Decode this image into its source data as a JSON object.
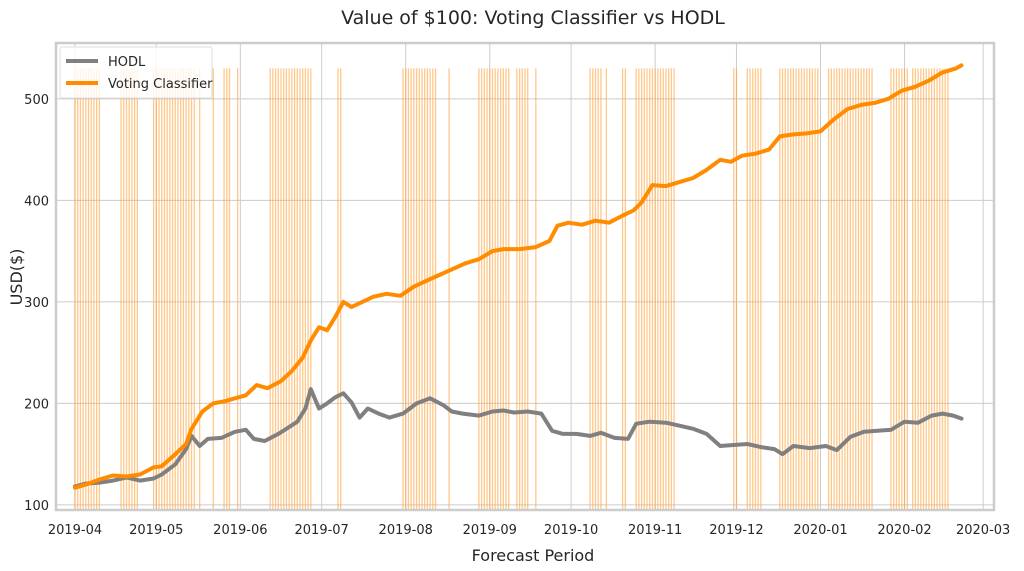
{
  "chart_data": {
    "type": "line",
    "title": "Value of $100: Voting Classifier vs HODL",
    "xlabel": "Forecast Period",
    "ylabel": "USD($)",
    "x_range": [
      "2019-03-25",
      "2020-03-05"
    ],
    "ylim": [
      95,
      555
    ],
    "grid": true,
    "legend_position": "top-left",
    "x_ticks": [
      "2019-04",
      "2019-05",
      "2019-06",
      "2019-07",
      "2019-08",
      "2019-09",
      "2019-10",
      "2019-11",
      "2019-12",
      "2020-01",
      "2020-02",
      "2020-03"
    ],
    "y_ticks": [
      100,
      200,
      300,
      400,
      500
    ],
    "series": [
      {
        "name": "HODL",
        "color": "#808080",
        "points": [
          [
            "2019-04-01",
            118
          ],
          [
            "2019-04-05",
            121
          ],
          [
            "2019-04-10",
            122
          ],
          [
            "2019-04-15",
            124
          ],
          [
            "2019-04-20",
            127
          ],
          [
            "2019-04-25",
            124
          ],
          [
            "2019-04-30",
            126
          ],
          [
            "2019-05-03",
            130
          ],
          [
            "2019-05-08",
            140
          ],
          [
            "2019-05-12",
            155
          ],
          [
            "2019-05-14",
            168
          ],
          [
            "2019-05-17",
            158
          ],
          [
            "2019-05-20",
            165
          ],
          [
            "2019-05-25",
            166
          ],
          [
            "2019-05-30",
            172
          ],
          [
            "2019-06-03",
            174
          ],
          [
            "2019-06-06",
            165
          ],
          [
            "2019-06-10",
            163
          ],
          [
            "2019-06-15",
            170
          ],
          [
            "2019-06-18",
            175
          ],
          [
            "2019-06-22",
            182
          ],
          [
            "2019-06-25",
            195
          ],
          [
            "2019-06-27",
            214
          ],
          [
            "2019-06-30",
            195
          ],
          [
            "2019-07-03",
            200
          ],
          [
            "2019-07-06",
            206
          ],
          [
            "2019-07-09",
            210
          ],
          [
            "2019-07-12",
            201
          ],
          [
            "2019-07-15",
            186
          ],
          [
            "2019-07-18",
            195
          ],
          [
            "2019-07-22",
            190
          ],
          [
            "2019-07-26",
            186
          ],
          [
            "2019-07-31",
            190
          ],
          [
            "2019-08-05",
            200
          ],
          [
            "2019-08-10",
            205
          ],
          [
            "2019-08-15",
            198
          ],
          [
            "2019-08-18",
            192
          ],
          [
            "2019-08-22",
            190
          ],
          [
            "2019-08-28",
            188
          ],
          [
            "2019-09-02",
            192
          ],
          [
            "2019-09-06",
            193
          ],
          [
            "2019-09-10",
            191
          ],
          [
            "2019-09-15",
            192
          ],
          [
            "2019-09-20",
            190
          ],
          [
            "2019-09-24",
            173
          ],
          [
            "2019-09-28",
            170
          ],
          [
            "2019-10-03",
            170
          ],
          [
            "2019-10-08",
            168
          ],
          [
            "2019-10-12",
            171
          ],
          [
            "2019-10-17",
            166
          ],
          [
            "2019-10-22",
            165
          ],
          [
            "2019-10-25",
            180
          ],
          [
            "2019-10-30",
            182
          ],
          [
            "2019-11-05",
            181
          ],
          [
            "2019-11-10",
            178
          ],
          [
            "2019-11-15",
            175
          ],
          [
            "2019-11-20",
            170
          ],
          [
            "2019-11-25",
            158
          ],
          [
            "2019-11-30",
            159
          ],
          [
            "2019-12-05",
            160
          ],
          [
            "2019-12-10",
            157
          ],
          [
            "2019-12-15",
            155
          ],
          [
            "2019-12-18",
            150
          ],
          [
            "2019-12-22",
            158
          ],
          [
            "2019-12-28",
            156
          ],
          [
            "2020-01-03",
            158
          ],
          [
            "2020-01-07",
            154
          ],
          [
            "2020-01-12",
            167
          ],
          [
            "2020-01-17",
            172
          ],
          [
            "2020-01-22",
            173
          ],
          [
            "2020-01-27",
            174
          ],
          [
            "2020-02-01",
            182
          ],
          [
            "2020-02-06",
            181
          ],
          [
            "2020-02-11",
            188
          ],
          [
            "2020-02-15",
            190
          ],
          [
            "2020-02-19",
            188
          ],
          [
            "2020-02-22",
            185
          ]
        ]
      },
      {
        "name": "Voting Classifier",
        "color": "#ff8c00",
        "points": [
          [
            "2019-04-01",
            117
          ],
          [
            "2019-04-05",
            120
          ],
          [
            "2019-04-10",
            125
          ],
          [
            "2019-04-15",
            129
          ],
          [
            "2019-04-20",
            128
          ],
          [
            "2019-04-25",
            130
          ],
          [
            "2019-04-30",
            137
          ],
          [
            "2019-05-03",
            138
          ],
          [
            "2019-05-08",
            150
          ],
          [
            "2019-05-12",
            160
          ],
          [
            "2019-05-14",
            175
          ],
          [
            "2019-05-18",
            192
          ],
          [
            "2019-05-22",
            200
          ],
          [
            "2019-05-26",
            202
          ],
          [
            "2019-05-30",
            205
          ],
          [
            "2019-06-03",
            208
          ],
          [
            "2019-06-07",
            218
          ],
          [
            "2019-06-11",
            215
          ],
          [
            "2019-06-16",
            222
          ],
          [
            "2019-06-20",
            232
          ],
          [
            "2019-06-24",
            245
          ],
          [
            "2019-06-27",
            262
          ],
          [
            "2019-06-30",
            275
          ],
          [
            "2019-07-03",
            272
          ],
          [
            "2019-07-06",
            285
          ],
          [
            "2019-07-09",
            300
          ],
          [
            "2019-07-12",
            295
          ],
          [
            "2019-07-16",
            300
          ],
          [
            "2019-07-20",
            305
          ],
          [
            "2019-07-25",
            308
          ],
          [
            "2019-07-30",
            306
          ],
          [
            "2019-08-04",
            315
          ],
          [
            "2019-08-08",
            320
          ],
          [
            "2019-08-13",
            326
          ],
          [
            "2019-08-18",
            332
          ],
          [
            "2019-08-23",
            338
          ],
          [
            "2019-08-28",
            342
          ],
          [
            "2019-09-02",
            350
          ],
          [
            "2019-09-06",
            352
          ],
          [
            "2019-09-12",
            352
          ],
          [
            "2019-09-18",
            354
          ],
          [
            "2019-09-23",
            360
          ],
          [
            "2019-09-26",
            375
          ],
          [
            "2019-09-30",
            378
          ],
          [
            "2019-10-05",
            376
          ],
          [
            "2019-10-10",
            380
          ],
          [
            "2019-10-15",
            378
          ],
          [
            "2019-10-20",
            385
          ],
          [
            "2019-10-24",
            390
          ],
          [
            "2019-10-27",
            398
          ],
          [
            "2019-10-31",
            415
          ],
          [
            "2019-11-05",
            414
          ],
          [
            "2019-11-10",
            418
          ],
          [
            "2019-11-15",
            422
          ],
          [
            "2019-11-20",
            430
          ],
          [
            "2019-11-25",
            440
          ],
          [
            "2019-11-29",
            438
          ],
          [
            "2019-12-03",
            444
          ],
          [
            "2019-12-08",
            446
          ],
          [
            "2019-12-13",
            450
          ],
          [
            "2019-12-17",
            463
          ],
          [
            "2019-12-22",
            465
          ],
          [
            "2019-12-27",
            466
          ],
          [
            "2020-01-01",
            468
          ],
          [
            "2020-01-06",
            480
          ],
          [
            "2020-01-11",
            490
          ],
          [
            "2020-01-16",
            494
          ],
          [
            "2020-01-21",
            496
          ],
          [
            "2020-01-26",
            500
          ],
          [
            "2020-01-31",
            508
          ],
          [
            "2020-02-05",
            512
          ],
          [
            "2020-02-10",
            518
          ],
          [
            "2020-02-15",
            526
          ],
          [
            "2020-02-20",
            530
          ],
          [
            "2020-02-22",
            533
          ]
        ]
      }
    ],
    "signal_color": "#ffa43c",
    "signal_top": 530,
    "signal_dates": [
      "2019-04-01",
      "2019-04-02",
      "2019-04-03",
      "2019-04-04",
      "2019-04-05",
      "2019-04-06",
      "2019-04-07",
      "2019-04-08",
      "2019-04-09",
      "2019-04-10",
      "2019-04-18",
      "2019-04-19",
      "2019-04-20",
      "2019-04-21",
      "2019-04-22",
      "2019-04-23",
      "2019-04-24",
      "2019-04-30",
      "2019-05-01",
      "2019-05-02",
      "2019-05-03",
      "2019-05-04",
      "2019-05-05",
      "2019-05-06",
      "2019-05-07",
      "2019-05-08",
      "2019-05-09",
      "2019-05-10",
      "2019-05-11",
      "2019-05-12",
      "2019-05-13",
      "2019-05-14",
      "2019-05-15",
      "2019-05-17",
      "2019-05-22",
      "2019-05-26",
      "2019-05-27",
      "2019-05-28",
      "2019-05-31",
      "2019-06-12",
      "2019-06-13",
      "2019-06-14",
      "2019-06-15",
      "2019-06-16",
      "2019-06-17",
      "2019-06-18",
      "2019-06-19",
      "2019-06-20",
      "2019-06-21",
      "2019-06-22",
      "2019-06-23",
      "2019-06-24",
      "2019-06-25",
      "2019-06-26",
      "2019-06-27",
      "2019-07-07",
      "2019-07-08",
      "2019-07-31",
      "2019-08-01",
      "2019-08-02",
      "2019-08-03",
      "2019-08-04",
      "2019-08-05",
      "2019-08-06",
      "2019-08-07",
      "2019-08-08",
      "2019-08-09",
      "2019-08-10",
      "2019-08-11",
      "2019-08-12",
      "2019-08-17",
      "2019-08-28",
      "2019-08-29",
      "2019-08-30",
      "2019-08-31",
      "2019-09-01",
      "2019-09-02",
      "2019-09-03",
      "2019-09-04",
      "2019-09-05",
      "2019-09-06",
      "2019-09-07",
      "2019-09-08",
      "2019-09-11",
      "2019-09-12",
      "2019-09-13",
      "2019-09-14",
      "2019-09-15",
      "2019-09-18",
      "2019-10-08",
      "2019-10-09",
      "2019-10-10",
      "2019-10-11",
      "2019-10-12",
      "2019-10-14",
      "2019-10-20",
      "2019-10-21",
      "2019-10-25",
      "2019-10-26",
      "2019-10-27",
      "2019-10-28",
      "2019-10-29",
      "2019-10-30",
      "2019-10-31",
      "2019-11-01",
      "2019-11-02",
      "2019-11-03",
      "2019-11-04",
      "2019-11-05",
      "2019-11-06",
      "2019-11-07",
      "2019-11-08",
      "2019-11-30",
      "2019-12-01",
      "2019-12-05",
      "2019-12-06",
      "2019-12-07",
      "2019-12-08",
      "2019-12-09",
      "2019-12-10",
      "2019-12-17",
      "2019-12-18",
      "2019-12-19",
      "2019-12-20",
      "2019-12-21",
      "2019-12-22",
      "2019-12-23",
      "2019-12-24",
      "2019-12-25",
      "2019-12-26",
      "2019-12-27",
      "2019-12-28",
      "2019-12-29",
      "2019-12-30",
      "2019-12-31",
      "2020-01-04",
      "2020-01-05",
      "2020-01-06",
      "2020-01-07",
      "2020-01-08",
      "2020-01-09",
      "2020-01-10",
      "2020-01-11",
      "2020-01-12",
      "2020-01-13",
      "2020-01-14",
      "2020-01-15",
      "2020-01-16",
      "2020-01-17",
      "2020-01-18",
      "2020-01-19",
      "2020-01-20",
      "2020-01-27",
      "2020-01-28",
      "2020-01-29",
      "2020-01-30",
      "2020-01-31",
      "2020-02-01",
      "2020-02-02",
      "2020-02-04",
      "2020-02-05",
      "2020-02-06",
      "2020-02-07",
      "2020-02-08",
      "2020-02-09",
      "2020-02-10",
      "2020-02-11",
      "2020-02-12",
      "2020-02-13",
      "2020-02-14",
      "2020-02-15",
      "2020-02-16",
      "2020-02-17"
    ]
  }
}
